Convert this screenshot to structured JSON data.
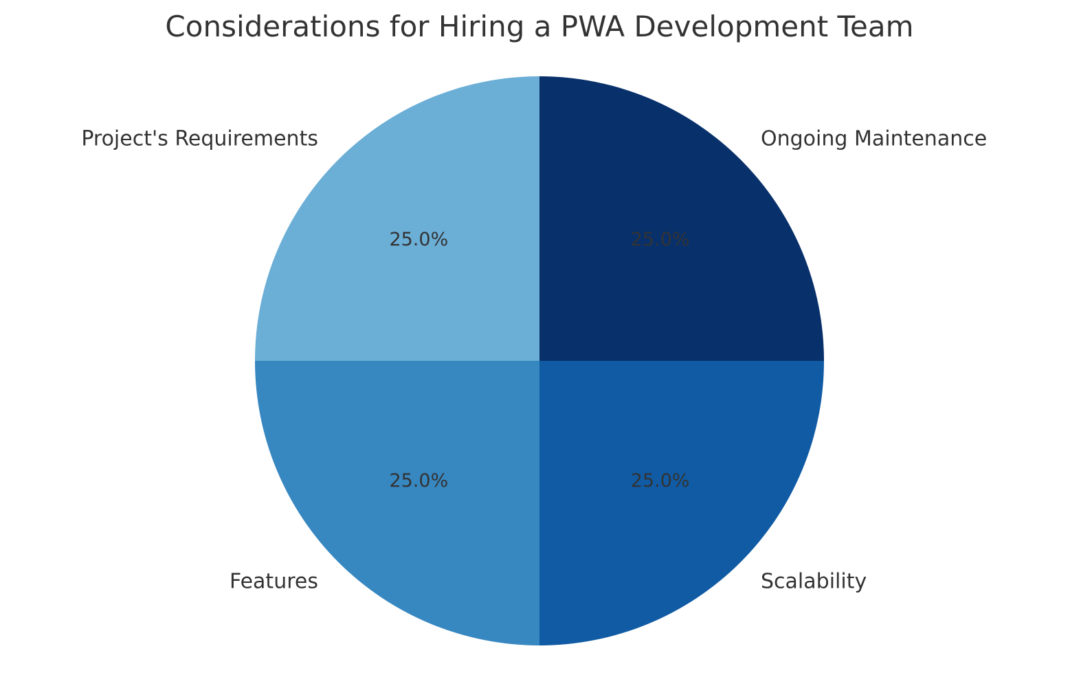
{
  "chart_data": {
    "type": "pie",
    "title": "Considerations for Hiring a PWA Development Team",
    "labels": [
      "Project's Requirements",
      "Features",
      "Scalability",
      "Ongoing Maintenance"
    ],
    "values": [
      25,
      25,
      25,
      25
    ],
    "percent_labels": [
      "25.0%",
      "25.0%",
      "25.0%",
      "25.0%"
    ],
    "colors": [
      "#6baed6",
      "#3787c0",
      "#105ba4",
      "#08306b"
    ],
    "start_angle_deg": 90,
    "direction": "counterclockwise",
    "legend": "none"
  }
}
